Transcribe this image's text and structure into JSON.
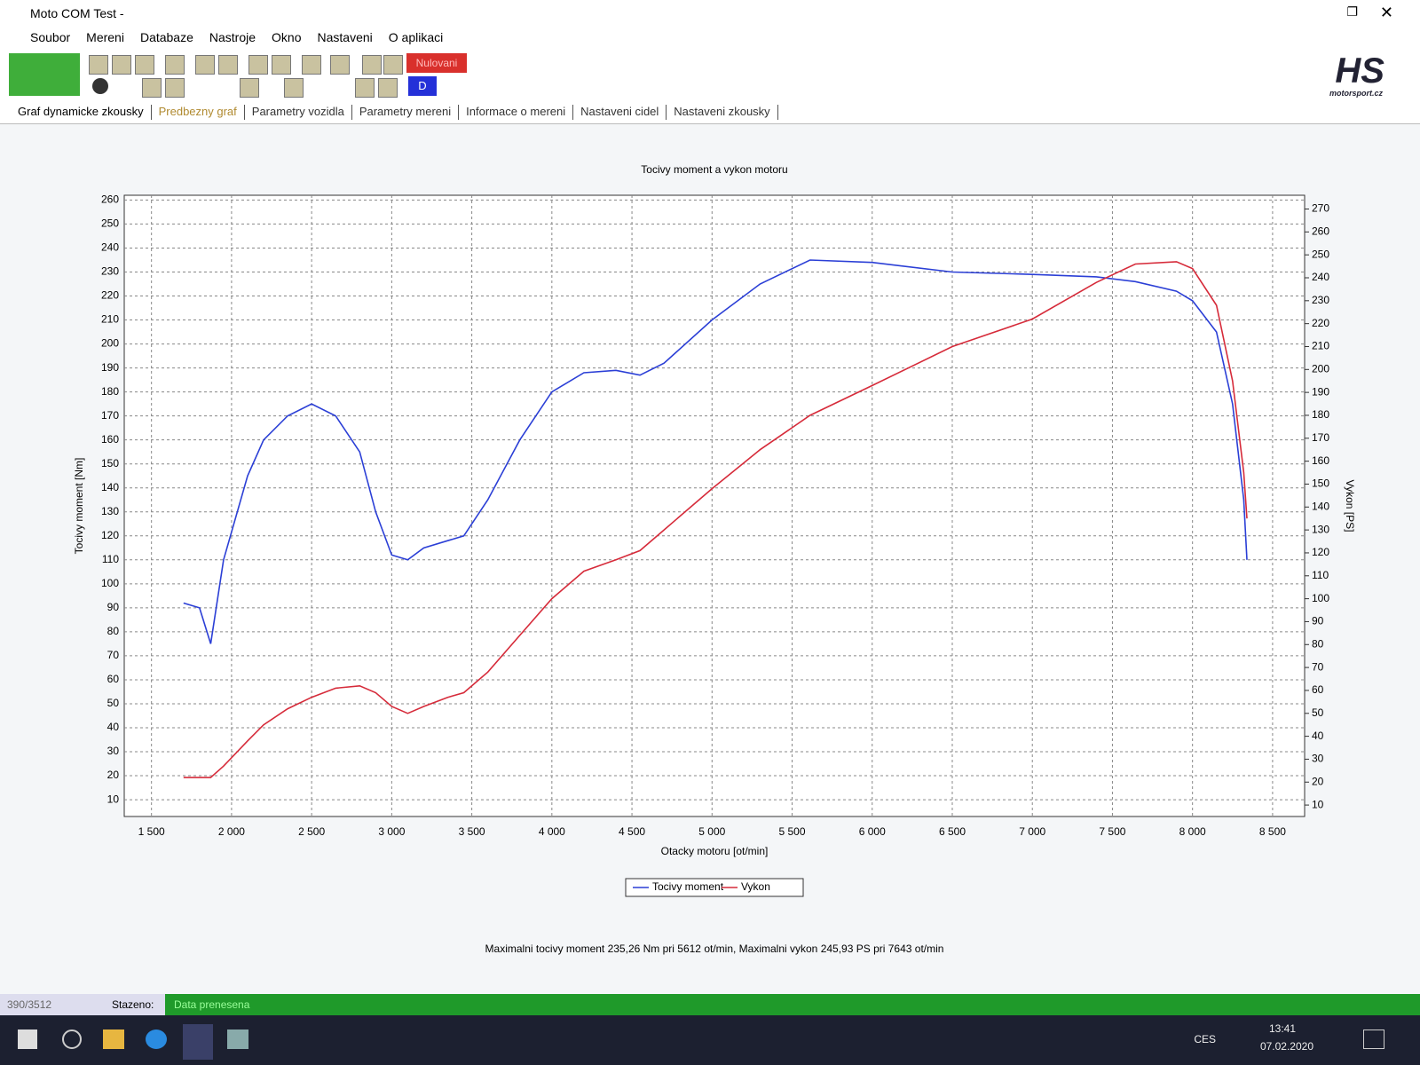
{
  "window": {
    "title": "Moto COM Test -"
  },
  "menu": [
    "Soubor",
    "Mereni",
    "Databaze",
    "Nastroje",
    "Okno",
    "Nastaveni",
    "O aplikaci"
  ],
  "toolbar": {
    "reset": "Nulovani",
    "mode": "D"
  },
  "logo": {
    "mark": "HS",
    "site": "motorsport.cz"
  },
  "tabs": [
    "Graf dynamicke zkousky",
    "Predbezny graf",
    "Parametry vozidla",
    "Parametry mereni",
    "Informace o mereni",
    "Nastaveni cidel",
    "Nastaveni zkousky"
  ],
  "status": {
    "count": "390/3512",
    "label": "Stazeno:",
    "message": "Data prenesena"
  },
  "taskbar": {
    "language": "CES",
    "time": "13:41",
    "date": "07.02.2020"
  },
  "chart_data": {
    "type": "line",
    "title": "Tocivy moment a vykon motoru",
    "x_label": "Otacky motoru [ot/min]",
    "y_label": "Tocivy moment [Nm]",
    "y2_label": "Vykon [PS]",
    "annotation": "Maximalni tocivy moment 235,26 Nm pri 5612 ot/min,  Maximalni vykon 245,93 PS pri 7643 ot/min",
    "grid": true,
    "legend": "bottom",
    "x": [
      1700,
      1800,
      1870,
      1950,
      2100,
      2200,
      2350,
      2500,
      2650,
      2800,
      2900,
      3000,
      3100,
      3200,
      3350,
      3450,
      3600,
      3800,
      4000,
      4200,
      4400,
      4550,
      4700,
      5000,
      5300,
      5612,
      6000,
      6500,
      7000,
      7400,
      7643,
      7900,
      8000,
      8150,
      8250,
      8320,
      8340
    ],
    "series": [
      {
        "name": "Tocivy moment",
        "color": "#2b3fd6",
        "values": [
          92,
          90,
          75,
          110,
          145,
          160,
          170,
          175,
          170,
          155,
          130,
          112,
          110,
          115,
          118,
          120,
          135,
          160,
          180,
          188,
          189,
          187,
          192,
          210,
          225,
          235,
          234,
          230,
          229,
          228,
          226,
          222,
          218,
          205,
          175,
          135,
          110
        ]
      },
      {
        "name": "Vykon",
        "color": "#d62b3a",
        "axis": "y2",
        "values": [
          22,
          22,
          22,
          27,
          38,
          45,
          52,
          57,
          61,
          62,
          59,
          53,
          50,
          53,
          57,
          59,
          68,
          84,
          100,
          112,
          117,
          121,
          130,
          148,
          165,
          180,
          193,
          210,
          222,
          238,
          246,
          247,
          244,
          228,
          195,
          155,
          135
        ]
      }
    ],
    "xlim": [
      1330,
      8700
    ],
    "xticks": [
      {
        "value": 1500,
        "label": "1 500"
      },
      {
        "value": 2000,
        "label": "2 000"
      },
      {
        "value": 2500,
        "label": "2 500"
      },
      {
        "value": 3000,
        "label": "3 000"
      },
      {
        "value": 3500,
        "label": "3 500"
      },
      {
        "value": 4000,
        "label": "4 000"
      },
      {
        "value": 4500,
        "label": "4 500"
      },
      {
        "value": 5000,
        "label": "5 000"
      },
      {
        "value": 5500,
        "label": "5 500"
      },
      {
        "value": 6000,
        "label": "6 000"
      },
      {
        "value": 6500,
        "label": "6 500"
      },
      {
        "value": 7000,
        "label": "7 000"
      },
      {
        "value": 7500,
        "label": "7 500"
      },
      {
        "value": 8000,
        "label": "8 000"
      },
      {
        "value": 8500,
        "label": "8 500"
      }
    ],
    "ylim": [
      3,
      262
    ],
    "yticks": [
      10,
      20,
      30,
      40,
      50,
      60,
      70,
      80,
      90,
      100,
      110,
      120,
      130,
      140,
      150,
      160,
      170,
      180,
      190,
      200,
      210,
      220,
      230,
      240,
      250,
      260
    ],
    "y2lim": [
      5,
      276
    ],
    "y2ticks": [
      10,
      20,
      30,
      40,
      50,
      60,
      70,
      80,
      90,
      100,
      110,
      120,
      130,
      140,
      150,
      160,
      170,
      180,
      190,
      200,
      210,
      220,
      230,
      240,
      250,
      260,
      270
    ]
  }
}
